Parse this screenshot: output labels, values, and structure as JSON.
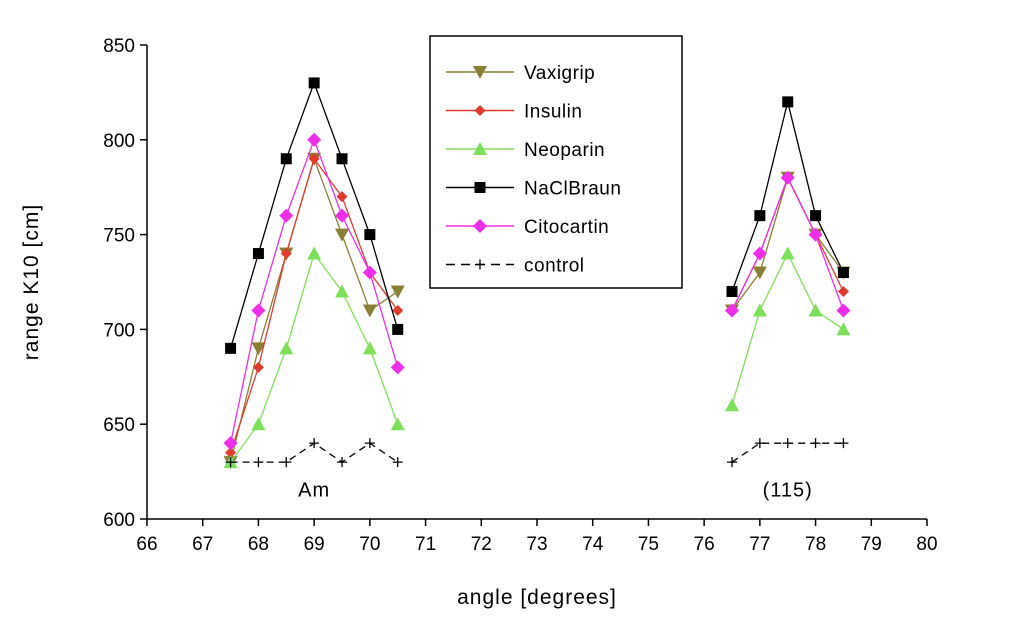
{
  "chart_data": {
    "type": "line",
    "xlabel": "angle [degrees]",
    "ylabel": "range K10 [cm]",
    "xlim": [
      66,
      80
    ],
    "ylim": [
      600,
      850
    ],
    "xticks": [
      "66",
      "67",
      "68",
      "69",
      "70",
      "71",
      "72",
      "73",
      "74",
      "75",
      "76",
      "77",
      "78",
      "79",
      "80"
    ],
    "yticks": [
      "600",
      "650",
      "700",
      "750",
      "800",
      "850"
    ],
    "grid": false,
    "legend_position": "top-center",
    "annotations": [
      {
        "text": "Am",
        "x": 69,
        "y": 616
      },
      {
        "text": "(115)",
        "x": 77.5,
        "y": 616
      }
    ],
    "series": [
      {
        "name": "Vaxigrip",
        "color": "#8b7f35",
        "marker": "triangle-down",
        "groups": [
          [
            [
              67.5,
              630
            ],
            [
              68,
              690
            ],
            [
              68.5,
              740
            ],
            [
              69,
              790
            ],
            [
              69.5,
              750
            ],
            [
              70,
              710
            ],
            [
              70.5,
              720
            ]
          ],
          [
            [
              76.5,
              710
            ],
            [
              77,
              730
            ],
            [
              77.5,
              780
            ],
            [
              78,
              750
            ],
            [
              78.5,
              730
            ]
          ]
        ]
      },
      {
        "name": "Insulin",
        "color": "#e23b2e",
        "marker": "diamond-small",
        "groups": [
          [
            [
              67.5,
              635
            ],
            [
              68,
              680
            ],
            [
              68.5,
              740
            ],
            [
              69,
              790
            ],
            [
              69.5,
              770
            ],
            [
              70,
              730
            ],
            [
              70.5,
              710
            ]
          ],
          [
            [
              76.5,
              710
            ],
            [
              77,
              740
            ],
            [
              77.5,
              780
            ],
            [
              78,
              750
            ],
            [
              78.5,
              720
            ]
          ]
        ]
      },
      {
        "name": "Neoparin",
        "color": "#7ee05a",
        "marker": "triangle-up",
        "groups": [
          [
            [
              67.5,
              630
            ],
            [
              68,
              650
            ],
            [
              68.5,
              690
            ],
            [
              69,
              740
            ],
            [
              69.5,
              720
            ],
            [
              70,
              690
            ],
            [
              70.5,
              650
            ]
          ],
          [
            [
              76.5,
              660
            ],
            [
              77,
              710
            ],
            [
              77.5,
              740
            ],
            [
              78,
              710
            ],
            [
              78.5,
              700
            ]
          ]
        ]
      },
      {
        "name": "NaClBraun",
        "color": "#000000",
        "marker": "square",
        "groups": [
          [
            [
              67.5,
              690
            ],
            [
              68,
              740
            ],
            [
              68.5,
              790
            ],
            [
              69,
              830
            ],
            [
              69.5,
              790
            ],
            [
              70,
              750
            ],
            [
              70.5,
              700
            ]
          ],
          [
            [
              76.5,
              720
            ],
            [
              77,
              760
            ],
            [
              77.5,
              820
            ],
            [
              78,
              760
            ],
            [
              78.5,
              730
            ]
          ]
        ]
      },
      {
        "name": "Citocartin",
        "color": "#ee2ee8",
        "marker": "diamond",
        "groups": [
          [
            [
              67.5,
              640
            ],
            [
              68,
              710
            ],
            [
              68.5,
              760
            ],
            [
              69,
              800
            ],
            [
              69.5,
              760
            ],
            [
              70,
              730
            ],
            [
              70.5,
              680
            ]
          ],
          [
            [
              76.5,
              710
            ],
            [
              77,
              740
            ],
            [
              77.5,
              780
            ],
            [
              78,
              750
            ],
            [
              78.5,
              710
            ]
          ]
        ]
      },
      {
        "name": "control",
        "color": "#000000",
        "marker": "plus",
        "dashed": true,
        "groups": [
          [
            [
              67.5,
              630
            ],
            [
              68,
              630
            ],
            [
              68.5,
              630
            ],
            [
              69,
              640
            ],
            [
              69.5,
              630
            ],
            [
              70,
              640
            ],
            [
              70.5,
              630
            ]
          ],
          [
            [
              76.5,
              630
            ],
            [
              77,
              640
            ],
            [
              77.5,
              640
            ],
            [
              78,
              640
            ],
            [
              78.5,
              640
            ]
          ]
        ]
      }
    ]
  }
}
